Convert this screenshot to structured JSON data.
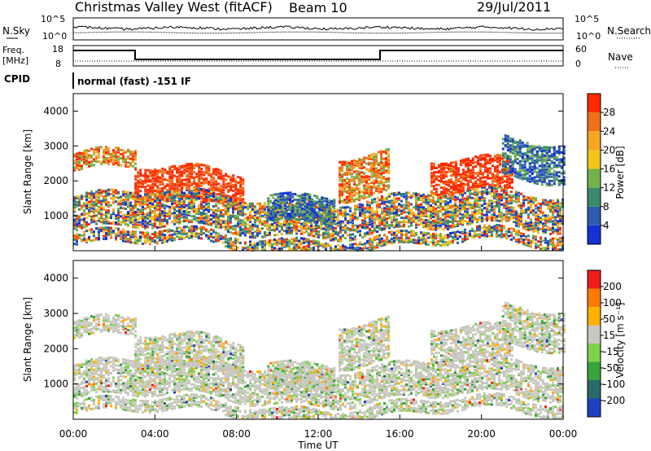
{
  "header": {
    "station_title": "Christmas Valley West (fitACF)",
    "beam_label": "Beam 10",
    "date_label": "29/Jul/2011"
  },
  "aux_panels": {
    "nsky_label": "N.Sky",
    "nsearch_label": "N.Search",
    "noise_ticks_left": [
      "10^5",
      "10^0"
    ],
    "noise_ticks_right": [
      "10^5",
      "10^0"
    ],
    "freq_label_1": "Freq.",
    "freq_label_2": "[MHz]",
    "freq_ticks": [
      "18",
      "8"
    ],
    "nave_label": "Nave",
    "nave_ticks": [
      "60",
      "0"
    ],
    "cpid_label": "CPID",
    "cpid_text": "normal (fast) -151 IF"
  },
  "chart_data": [
    {
      "type": "heatmap",
      "name": "power",
      "ylabel": "Slant Range [km]",
      "yticks": [
        "4000",
        "3000",
        "2000",
        "1000"
      ],
      "colorbar_label": "Power [dB]",
      "colorbar_ticks": [
        "28",
        "24",
        "20",
        "16",
        "12",
        "8",
        "4"
      ],
      "colors": [
        "#1432d2",
        "#2e5bb0",
        "#3a8a6b",
        "#74b04c",
        "#f0c419",
        "#f5a623",
        "#ee7018",
        "#ff2a00"
      ]
    },
    {
      "type": "heatmap",
      "name": "velocity",
      "ylabel": "Slant Range [km]",
      "yticks": [
        "4000",
        "3000",
        "2000",
        "1000"
      ],
      "colorbar_label": "Velocity [m s⁻¹]",
      "colorbar_ticks": [
        "200",
        "100",
        "50",
        "15",
        "-15",
        "-50",
        "-100",
        "-200"
      ],
      "colors": [
        "#2040c0",
        "#2a6a6a",
        "#39a33c",
        "#7fd04e",
        "#c8c8c0",
        "#ffb000",
        "#ff7a00",
        "#ee1c1c"
      ]
    }
  ],
  "time_axis": {
    "ticks": [
      "00:00",
      "04:00",
      "08:00",
      "12:00",
      "16:00",
      "20:00",
      "00:00"
    ],
    "label": "Time UT"
  }
}
